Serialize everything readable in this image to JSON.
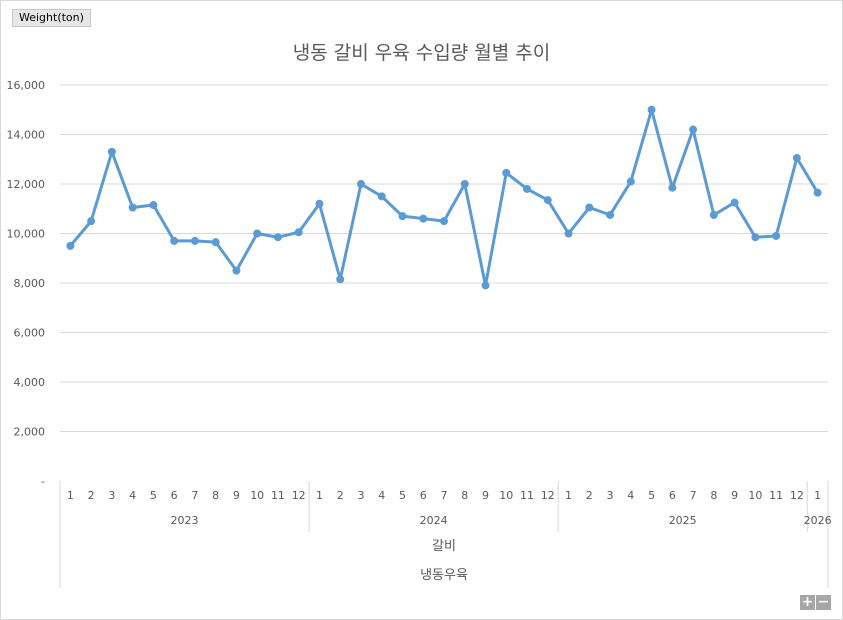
{
  "field_button": "Weight(ton)",
  "zoom": {
    "plus": "+",
    "minus": "−"
  },
  "chart_data": {
    "type": "line",
    "title": "냉동 갈비 우육 수입량 월별 추이",
    "ylim": [
      0,
      16000
    ],
    "y_ticks": [
      "-",
      "2,000",
      "4,000",
      "6,000",
      "8,000",
      "10,000",
      "12,000",
      "14,000",
      "16,000"
    ],
    "grid": true,
    "legend": "none",
    "colors": {
      "line": "#5b9bd5",
      "grid": "#d9d9d9",
      "axis_text": "#595959"
    },
    "x_months": [
      "1",
      "2",
      "3",
      "4",
      "5",
      "6",
      "7",
      "8",
      "9",
      "10",
      "11",
      "12",
      "1",
      "2",
      "3",
      "4",
      "5",
      "6",
      "7",
      "8",
      "9",
      "10",
      "11",
      "12",
      "1",
      "2",
      "3",
      "4",
      "5",
      "6",
      "7",
      "8",
      "9",
      "10",
      "11",
      "12",
      "1"
    ],
    "x_years": [
      {
        "label": "2023",
        "count": 12
      },
      {
        "label": "2024",
        "count": 12
      },
      {
        "label": "2025",
        "count": 12
      },
      {
        "label": "2026",
        "count": 1
      }
    ],
    "x_category_level3": "갈비",
    "x_category_level4": "냉동우육",
    "series": [
      {
        "values": [
          9500,
          10500,
          13300,
          11050,
          11150,
          9700,
          9700,
          9650,
          8500,
          10000,
          9850,
          10050,
          11200,
          8150,
          12000,
          11500,
          10700,
          10600,
          10500,
          12000,
          7900,
          12450,
          11800,
          11350,
          10000,
          11050,
          10750,
          12100,
          15000,
          11850,
          14200,
          10750,
          11250,
          9850,
          9900,
          13050,
          11650
        ]
      }
    ]
  }
}
